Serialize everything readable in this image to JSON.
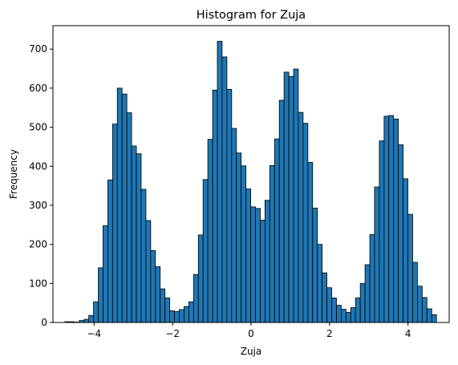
{
  "chart_data": {
    "type": "bar",
    "title": "Histogram for Zuja",
    "xlabel": "Zuja",
    "ylabel": "Frequency",
    "xlim": [
      -5.05,
      5.05
    ],
    "ylim": [
      0,
      760
    ],
    "x_ticks": [
      -4,
      -2,
      0,
      2,
      4
    ],
    "y_ticks": [
      0,
      100,
      200,
      300,
      400,
      500,
      600,
      700
    ],
    "bar_color": "#1f77b4",
    "edge_color": "#000000",
    "bin_width": 0.1214,
    "bin_starts": [
      -4.744,
      -4.623,
      -4.501,
      -4.38,
      -4.258,
      -4.137,
      -4.016,
      -3.894,
      -3.773,
      -3.651,
      -3.53,
      -3.409,
      -3.287,
      -3.166,
      -3.044,
      -2.923,
      -2.801,
      -2.68,
      -2.559,
      -2.437,
      -2.316,
      -2.194,
      -2.073,
      -1.952,
      -1.83,
      -1.709,
      -1.587,
      -1.466,
      -1.344,
      -1.223,
      -1.102,
      -0.98,
      -0.859,
      -0.737,
      -0.616,
      -0.494,
      -0.373,
      -0.252,
      -0.13,
      -0.009,
      0.113,
      0.234,
      0.355,
      0.477,
      0.598,
      0.72,
      0.841,
      0.963,
      1.084,
      1.205,
      1.327,
      1.448,
      1.57,
      1.691,
      1.812,
      1.934,
      2.055,
      2.177,
      2.298,
      2.42,
      2.541,
      2.662,
      2.784,
      2.905,
      3.027,
      3.148,
      3.27,
      3.391,
      3.512,
      3.634,
      3.755,
      3.877,
      3.998,
      4.119,
      4.241,
      4.362,
      4.484,
      4.605
    ],
    "values": [
      2,
      2,
      1,
      5,
      8,
      18,
      53,
      140,
      248,
      365,
      508,
      600,
      585,
      537,
      452,
      432,
      341,
      261,
      184,
      143,
      86,
      63,
      30,
      28,
      33,
      41,
      53,
      123,
      224,
      366,
      469,
      595,
      720,
      680,
      597,
      497,
      434,
      401,
      342,
      296,
      292,
      262,
      313,
      402,
      470,
      569,
      641,
      630,
      649,
      538,
      510,
      410,
      293,
      200,
      127,
      89,
      63,
      44,
      34,
      26,
      38,
      63,
      100,
      148,
      225,
      347,
      465,
      528,
      530,
      521,
      455,
      368,
      277,
      154,
      93,
      64,
      35,
      20
    ]
  }
}
